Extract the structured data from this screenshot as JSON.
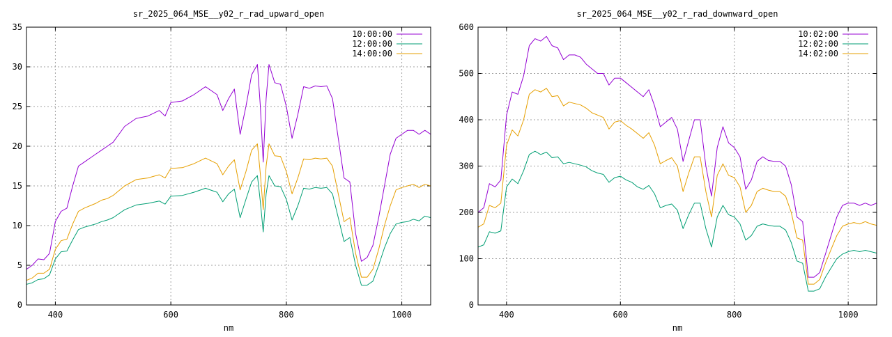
{
  "chart_data": [
    {
      "type": "line",
      "title": "sr_2025_064_MSE__y02_r_rad_upward_open",
      "xlabel": "nm",
      "ylabel": "",
      "xlim": [
        350,
        1050
      ],
      "ylim": [
        0,
        35
      ],
      "xticks": [
        400,
        600,
        800,
        1000
      ],
      "yticks": [
        0,
        5,
        10,
        15,
        20,
        25,
        30,
        35
      ],
      "grid": true,
      "legend_position": "top-right",
      "series": [
        {
          "name": "10:00:00",
          "color": "#9400d3",
          "x": [
            350,
            360,
            370,
            380,
            390,
            400,
            410,
            420,
            430,
            440,
            450,
            460,
            470,
            480,
            490,
            500,
            520,
            540,
            560,
            580,
            590,
            600,
            620,
            640,
            660,
            680,
            690,
            700,
            710,
            720,
            730,
            740,
            750,
            755,
            760,
            765,
            770,
            780,
            790,
            800,
            810,
            820,
            830,
            840,
            850,
            860,
            870,
            880,
            890,
            900,
            910,
            920,
            930,
            940,
            950,
            960,
            970,
            980,
            990,
            1000,
            1010,
            1020,
            1030,
            1040,
            1050
          ],
          "y": [
            4.5,
            5.0,
            5.8,
            5.7,
            6.5,
            10.5,
            11.8,
            12.2,
            15.0,
            17.5,
            18.0,
            18.5,
            19.0,
            19.5,
            20.0,
            20.5,
            22.5,
            23.5,
            23.8,
            24.5,
            23.8,
            25.5,
            25.7,
            26.5,
            27.5,
            26.5,
            24.5,
            26.0,
            27.2,
            21.5,
            25.0,
            29.0,
            30.3,
            25.0,
            18.0,
            26.0,
            30.3,
            28.0,
            27.8,
            25.0,
            21.0,
            24.0,
            27.5,
            27.3,
            27.6,
            27.5,
            27.6,
            26.0,
            21.0,
            16.0,
            15.5,
            9.0,
            5.5,
            6.0,
            7.5,
            11.0,
            15.0,
            19.0,
            21.0,
            21.5,
            22.0,
            22.0,
            21.5,
            22.0,
            21.5
          ]
        },
        {
          "name": "12:00:00",
          "color": "#009e73",
          "x": [
            350,
            360,
            370,
            380,
            390,
            400,
            410,
            420,
            430,
            440,
            450,
            460,
            470,
            480,
            490,
            500,
            520,
            540,
            560,
            580,
            590,
            600,
            620,
            640,
            660,
            680,
            690,
            700,
            710,
            720,
            730,
            740,
            750,
            755,
            760,
            765,
            770,
            780,
            790,
            800,
            810,
            820,
            830,
            840,
            850,
            860,
            870,
            880,
            890,
            900,
            910,
            920,
            930,
            940,
            950,
            960,
            970,
            980,
            990,
            1000,
            1010,
            1020,
            1030,
            1040,
            1050
          ],
          "y": [
            2.6,
            2.8,
            3.2,
            3.3,
            3.8,
            5.8,
            6.7,
            6.8,
            8.2,
            9.5,
            9.8,
            10.0,
            10.2,
            10.5,
            10.7,
            11.0,
            12.0,
            12.6,
            12.8,
            13.1,
            12.7,
            13.7,
            13.8,
            14.2,
            14.7,
            14.2,
            13.0,
            14.0,
            14.6,
            11.0,
            13.3,
            15.5,
            16.3,
            13.0,
            9.2,
            14.0,
            16.3,
            15.0,
            14.9,
            13.3,
            10.7,
            12.5,
            14.7,
            14.6,
            14.8,
            14.7,
            14.8,
            14.0,
            11.0,
            8.0,
            8.5,
            5.0,
            2.5,
            2.5,
            3.0,
            5.0,
            7.2,
            9.0,
            10.2,
            10.4,
            10.5,
            10.8,
            10.6,
            11.2,
            11.0
          ]
        },
        {
          "name": "14:00:00",
          "color": "#e69f00",
          "x": [
            350,
            360,
            370,
            380,
            390,
            400,
            410,
            420,
            430,
            440,
            450,
            460,
            470,
            480,
            490,
            500,
            520,
            540,
            560,
            580,
            590,
            600,
            620,
            640,
            660,
            680,
            690,
            700,
            710,
            720,
            730,
            740,
            750,
            755,
            760,
            765,
            770,
            780,
            790,
            800,
            810,
            820,
            830,
            840,
            850,
            860,
            870,
            880,
            890,
            900,
            910,
            920,
            930,
            940,
            950,
            960,
            970,
            980,
            990,
            1000,
            1010,
            1020,
            1030,
            1040,
            1050
          ],
          "y": [
            3.1,
            3.4,
            4.0,
            4.0,
            4.5,
            7.0,
            8.1,
            8.3,
            10.2,
            11.8,
            12.2,
            12.5,
            12.8,
            13.2,
            13.4,
            13.8,
            15.0,
            15.8,
            16.0,
            16.4,
            16.0,
            17.2,
            17.3,
            17.8,
            18.5,
            17.8,
            16.4,
            17.5,
            18.3,
            14.5,
            16.8,
            19.5,
            20.3,
            16.5,
            12.0,
            17.5,
            20.3,
            18.8,
            18.7,
            16.8,
            14.0,
            16.0,
            18.4,
            18.3,
            18.5,
            18.4,
            18.5,
            17.5,
            14.0,
            10.5,
            11.0,
            6.5,
            3.5,
            3.5,
            4.5,
            7.0,
            10.0,
            12.5,
            14.5,
            14.8,
            15.0,
            15.2,
            14.8,
            15.2,
            15.0
          ]
        }
      ]
    },
    {
      "type": "line",
      "title": "sr_2025_064_MSE__y02_r_rad_downward_open",
      "xlabel": "nm",
      "ylabel": "",
      "xlim": [
        350,
        1050
      ],
      "ylim": [
        0,
        600
      ],
      "xticks": [
        400,
        600,
        800,
        1000
      ],
      "yticks": [
        0,
        100,
        200,
        300,
        400,
        500,
        600
      ],
      "grid": true,
      "legend_position": "top-right",
      "series": [
        {
          "name": "10:02:00",
          "color": "#9400d3",
          "x": [
            350,
            360,
            370,
            380,
            390,
            400,
            410,
            420,
            430,
            440,
            450,
            460,
            470,
            480,
            490,
            500,
            510,
            520,
            530,
            540,
            550,
            560,
            570,
            580,
            590,
            600,
            610,
            620,
            630,
            640,
            650,
            660,
            670,
            680,
            690,
            700,
            710,
            720,
            730,
            740,
            750,
            760,
            770,
            780,
            790,
            800,
            810,
            820,
            830,
            840,
            850,
            860,
            870,
            880,
            890,
            900,
            910,
            920,
            930,
            940,
            950,
            960,
            970,
            980,
            990,
            1000,
            1010,
            1020,
            1030,
            1040,
            1050
          ],
          "y": [
            200,
            210,
            262,
            255,
            270,
            410,
            460,
            455,
            495,
            560,
            575,
            570,
            580,
            560,
            555,
            530,
            540,
            540,
            535,
            520,
            510,
            500,
            500,
            475,
            490,
            490,
            480,
            470,
            460,
            450,
            465,
            430,
            385,
            395,
            405,
            380,
            310,
            355,
            400,
            400,
            300,
            235,
            340,
            385,
            350,
            340,
            320,
            250,
            270,
            310,
            320,
            312,
            310,
            310,
            300,
            260,
            190,
            180,
            60,
            60,
            70,
            110,
            150,
            190,
            215,
            220,
            220,
            215,
            220,
            215,
            220
          ]
        },
        {
          "name": "12:02:00",
          "color": "#009e73",
          "x": [
            350,
            360,
            370,
            380,
            390,
            400,
            410,
            420,
            430,
            440,
            450,
            460,
            470,
            480,
            490,
            500,
            510,
            520,
            530,
            540,
            550,
            560,
            570,
            580,
            590,
            600,
            610,
            620,
            630,
            640,
            650,
            660,
            670,
            680,
            690,
            700,
            710,
            720,
            730,
            740,
            750,
            760,
            770,
            780,
            790,
            800,
            810,
            820,
            830,
            840,
            850,
            860,
            870,
            880,
            890,
            900,
            910,
            920,
            930,
            940,
            950,
            960,
            970,
            980,
            990,
            1000,
            1010,
            1020,
            1030,
            1040,
            1050
          ],
          "y": [
            125,
            130,
            158,
            155,
            160,
            255,
            272,
            262,
            290,
            325,
            332,
            325,
            330,
            318,
            320,
            305,
            308,
            305,
            302,
            298,
            290,
            285,
            282,
            265,
            275,
            278,
            270,
            265,
            255,
            250,
            258,
            240,
            210,
            215,
            218,
            205,
            165,
            195,
            220,
            220,
            165,
            125,
            190,
            215,
            195,
            190,
            175,
            140,
            150,
            170,
            175,
            172,
            170,
            170,
            162,
            135,
            95,
            90,
            30,
            30,
            35,
            60,
            80,
            100,
            110,
            115,
            118,
            115,
            118,
            115,
            112
          ]
        },
        {
          "name": "14:02:00",
          "color": "#e69f00",
          "x": [
            350,
            360,
            370,
            380,
            390,
            400,
            410,
            420,
            430,
            440,
            450,
            460,
            470,
            480,
            490,
            500,
            510,
            520,
            530,
            540,
            550,
            560,
            570,
            580,
            590,
            600,
            610,
            620,
            630,
            640,
            650,
            660,
            670,
            680,
            690,
            700,
            710,
            720,
            730,
            740,
            750,
            760,
            770,
            780,
            790,
            800,
            810,
            820,
            830,
            840,
            850,
            860,
            870,
            880,
            890,
            900,
            910,
            920,
            930,
            940,
            950,
            960,
            970,
            980,
            990,
            1000,
            1010,
            1020,
            1030,
            1040,
            1050
          ],
          "y": [
            168,
            175,
            215,
            210,
            220,
            345,
            378,
            365,
            400,
            455,
            465,
            460,
            468,
            450,
            452,
            430,
            438,
            435,
            432,
            425,
            415,
            410,
            405,
            380,
            395,
            398,
            388,
            380,
            370,
            360,
            372,
            345,
            305,
            312,
            318,
            300,
            245,
            285,
            320,
            320,
            245,
            190,
            280,
            305,
            280,
            275,
            255,
            200,
            215,
            245,
            252,
            248,
            245,
            245,
            235,
            200,
            145,
            140,
            45,
            45,
            55,
            90,
            120,
            150,
            170,
            175,
            178,
            175,
            180,
            175,
            172
          ]
        }
      ]
    }
  ]
}
